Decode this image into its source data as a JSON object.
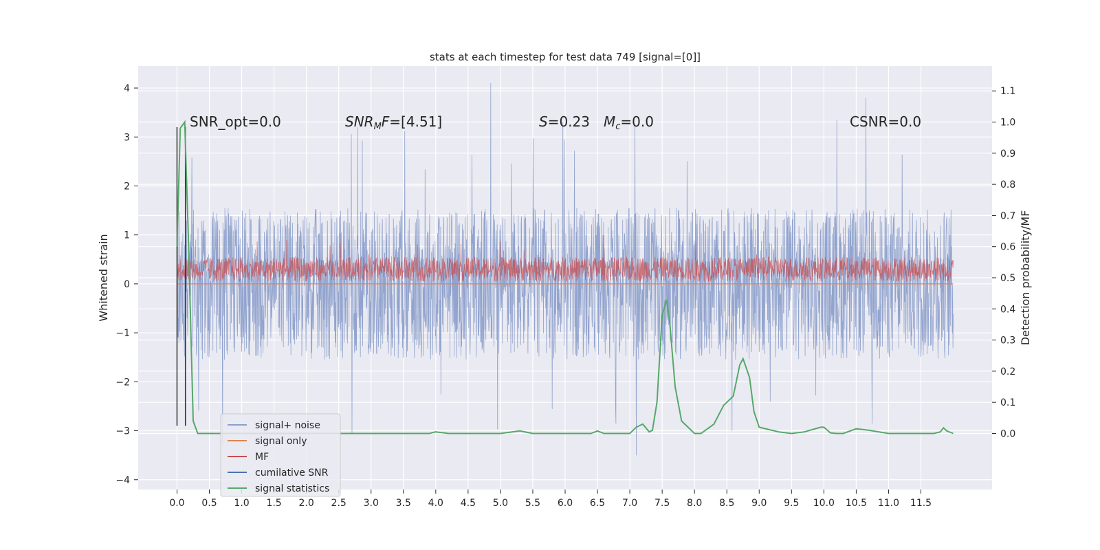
{
  "chart_data": {
    "type": "line",
    "title": "stats at each timestep for test data 749 [signal=[0]]",
    "ylabel": "Whitened strain",
    "ylabel_right": "Detection probability/MF",
    "xlim": [
      -0.6,
      12.6
    ],
    "ylim": [
      -4.2,
      4.45
    ],
    "ylim_right": [
      -0.18,
      1.18
    ],
    "x_ticks": [
      0.0,
      0.5,
      1.0,
      1.5,
      2.0,
      2.5,
      3.0,
      3.5,
      4.0,
      4.5,
      5.0,
      5.5,
      6.0,
      6.5,
      7.0,
      7.5,
      8.0,
      8.5,
      9.0,
      9.5,
      10.0,
      10.5,
      11.0,
      11.5
    ],
    "x_tick_labels": [
      "0.0",
      "0.5",
      "1.0",
      "1.5",
      "2.0",
      "2.5",
      "3.0",
      "3.5",
      "4.0",
      "4.5",
      "5.0",
      "5.5",
      "6.0",
      "6.5",
      "7.0",
      "7.5",
      "8.0",
      "8.5",
      "9.0",
      "9.5",
      "10.0",
      "10.5",
      "11.0",
      "11.5"
    ],
    "y_ticks": [
      -4,
      -3,
      -2,
      -1,
      0,
      1,
      2,
      3,
      4
    ],
    "y_tick_labels": [
      "−4",
      "−3",
      "−2",
      "−1",
      "0",
      "1",
      "2",
      "3",
      "4"
    ],
    "y_ticks_right": [
      0.0,
      0.1,
      0.2,
      0.3,
      0.4,
      0.5,
      0.6,
      0.7,
      0.8,
      0.9,
      1.0,
      1.1
    ],
    "y_tick_labels_right": [
      "0.0",
      "0.1",
      "0.2",
      "0.3",
      "0.4",
      "0.5",
      "0.6",
      "0.7",
      "0.8",
      "0.9",
      "1.0",
      "1.1"
    ],
    "grid": true,
    "legend_placement": "lower-left",
    "annotations": [
      {
        "text": "SNR_opt=0.0",
        "x": 0.2,
        "y": 3.3
      },
      {
        "text": "SNR_MF=[4.51]",
        "x": 2.6,
        "y": 3.3
      },
      {
        "text": "S=0.23",
        "x": 5.6,
        "y": 3.3
      },
      {
        "text": "M_c=0.0",
        "x": 6.6,
        "y": 3.3
      },
      {
        "text": "CSNR=0.0",
        "x": 10.4,
        "y": 3.3
      }
    ],
    "series": [
      {
        "name": "signal+ noise",
        "color": "#8da0cb",
        "axis": "left",
        "description_values": {
          "noise_amplitude": 1.4,
          "spike_max": 4.1,
          "spike_min": -3.8,
          "x_range": [
            0.0,
            12.0
          ]
        }
      },
      {
        "name": "signal only",
        "color": "#dd8452",
        "axis": "left",
        "values_constant": 0.0
      },
      {
        "name": "MF",
        "color": "#c44e52",
        "axis": "left",
        "description_values": {
          "baseline_min": 0.0,
          "baseline_max": 0.55,
          "spike_max": 1.0
        }
      },
      {
        "name": "cumilative SNR",
        "color": "#4c72b0",
        "axis": "left"
      },
      {
        "name": "signal statistics",
        "color": "#55a868",
        "axis": "right",
        "x": [
          0.0,
          0.05,
          0.12,
          0.18,
          0.25,
          0.32,
          0.5,
          1.0,
          2.0,
          3.0,
          3.5,
          3.9,
          4.0,
          4.2,
          4.5,
          5.0,
          5.3,
          5.5,
          6.0,
          6.4,
          6.5,
          6.6,
          7.0,
          7.1,
          7.2,
          7.3,
          7.35,
          7.42,
          7.5,
          7.57,
          7.62,
          7.7,
          7.8,
          8.0,
          8.1,
          8.3,
          8.45,
          8.6,
          8.7,
          8.75,
          8.85,
          8.92,
          9.0,
          9.3,
          9.5,
          9.7,
          9.95,
          10.0,
          10.1,
          10.2,
          10.3,
          10.5,
          10.7,
          11.0,
          11.5,
          11.7,
          11.8,
          11.85,
          11.9,
          12.0
        ],
        "values": [
          0.6,
          0.98,
          1.0,
          0.6,
          0.04,
          0.0,
          0.0,
          0.0,
          0.0,
          0.0,
          0.0,
          0.0,
          0.005,
          0.0,
          0.0,
          0.0,
          0.008,
          0.0,
          0.0,
          0.0,
          0.008,
          0.0,
          0.0,
          0.02,
          0.03,
          0.005,
          0.01,
          0.1,
          0.38,
          0.43,
          0.35,
          0.15,
          0.04,
          0.0,
          0.0,
          0.03,
          0.09,
          0.12,
          0.22,
          0.24,
          0.18,
          0.07,
          0.02,
          0.005,
          0.0,
          0.005,
          0.02,
          0.02,
          0.002,
          0.0,
          0.0,
          0.015,
          0.01,
          0.0,
          0.0,
          0.0,
          0.005,
          0.018,
          0.008,
          0.0
        ]
      },
      {
        "name": "",
        "color": "#2f2f2f",
        "axis": "left",
        "vertical_lines_x": [
          0.0,
          0.13
        ]
      }
    ]
  }
}
